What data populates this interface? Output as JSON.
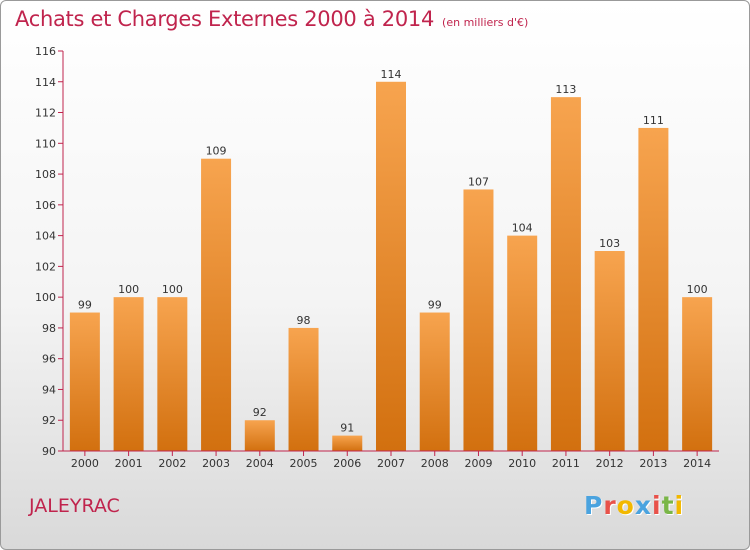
{
  "header": {
    "title": "Achats et Charges Externes 2000 à 2014",
    "subtitle": "(en milliers d'€)"
  },
  "footer": {
    "commune": "JALEYRAC",
    "logo_letters": [
      "P",
      "r",
      "o",
      "x",
      "i",
      "t",
      "i"
    ],
    "logo_colors": [
      "#4aa3df",
      "#e8524a",
      "#f2b800",
      "#4aa3df",
      "#e8524a",
      "#7ab648",
      "#f2b800"
    ]
  },
  "chart_data": {
    "type": "bar",
    "title": "Achats et Charges Externes 2000 à 2014",
    "subtitle": "(en milliers d'€)",
    "xlabel": "",
    "ylabel": "",
    "categories": [
      "2000",
      "2001",
      "2002",
      "2003",
      "2004",
      "2005",
      "2006",
      "2007",
      "2008",
      "2009",
      "2010",
      "2011",
      "2012",
      "2013",
      "2014"
    ],
    "values": [
      99,
      100,
      100,
      109,
      92,
      98,
      91,
      114,
      99,
      107,
      104,
      113,
      103,
      111,
      100
    ],
    "ylim": [
      90,
      116
    ],
    "yticks": [
      90,
      92,
      94,
      96,
      98,
      100,
      102,
      104,
      106,
      108,
      110,
      112,
      114,
      116
    ],
    "grid": false,
    "legend": "none",
    "bar_color_top": "#f7a44f",
    "bar_color_bottom": "#d2700f",
    "axis_color": "#c0244d"
  }
}
